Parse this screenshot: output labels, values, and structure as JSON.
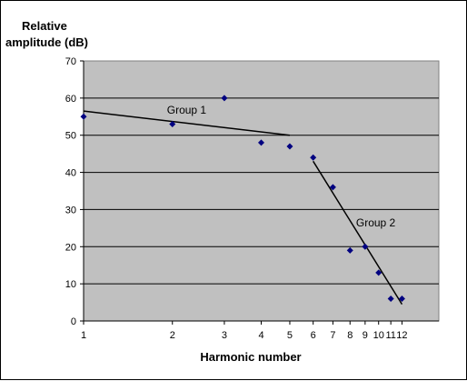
{
  "chart_data": {
    "type": "scatter",
    "ylabel_line1": "Relative",
    "ylabel_line2": "amplitude (dB)",
    "xlabel": "Harmonic number",
    "x_scale": "log",
    "xlim": [
      1,
      16
    ],
    "ylim": [
      0,
      70
    ],
    "y_ticks": [
      0,
      10,
      20,
      30,
      40,
      50,
      60,
      70
    ],
    "x_ticks": [
      1,
      2,
      3,
      4,
      5,
      6,
      7,
      8,
      9,
      10,
      11,
      12
    ],
    "grid": "horizontal",
    "plot_background": "#c0c0c0",
    "marker_color": "#000080",
    "points": [
      {
        "x": 1,
        "y": 55
      },
      {
        "x": 2,
        "y": 53
      },
      {
        "x": 3,
        "y": 60
      },
      {
        "x": 4,
        "y": 48
      },
      {
        "x": 5,
        "y": 47
      },
      {
        "x": 6,
        "y": 44
      },
      {
        "x": 7,
        "y": 36
      },
      {
        "x": 8,
        "y": 19
      },
      {
        "x": 9,
        "y": 20
      },
      {
        "x": 10,
        "y": 13
      },
      {
        "x": 11,
        "y": 6
      },
      {
        "x": 12,
        "y": 6
      }
    ],
    "trend_lines": [
      {
        "label": "Group 1",
        "from": {
          "x": 1,
          "y": 56.5
        },
        "to": {
          "x": 5,
          "y": 50
        }
      },
      {
        "label": "Group 2",
        "from": {
          "x": 6,
          "y": 43
        },
        "to": {
          "x": 12,
          "y": 4.5
        }
      }
    ]
  }
}
